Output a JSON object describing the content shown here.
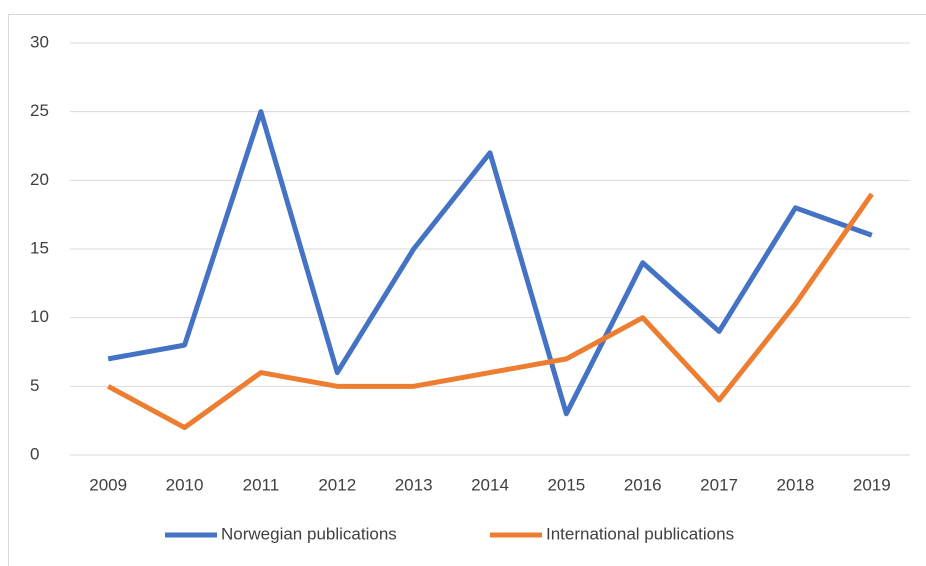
{
  "chart_data": {
    "type": "line",
    "categories": [
      "2009",
      "2010",
      "2011",
      "2012",
      "2013",
      "2014",
      "2015",
      "2016",
      "2017",
      "2018",
      "2019"
    ],
    "series": [
      {
        "name": "Norwegian publications",
        "color": "#4472c4",
        "values": [
          7,
          8,
          25,
          6,
          15,
          22,
          3,
          14,
          9,
          18,
          16
        ]
      },
      {
        "name": "International publications",
        "color": "#ed7d31",
        "values": [
          5,
          2,
          6,
          5,
          5,
          6,
          7,
          10,
          4,
          11,
          19
        ]
      }
    ],
    "ylim": [
      0,
      30
    ],
    "yticks": [
      0,
      5,
      10,
      15,
      20,
      25,
      30
    ],
    "grid": true,
    "legend": "bottom"
  }
}
